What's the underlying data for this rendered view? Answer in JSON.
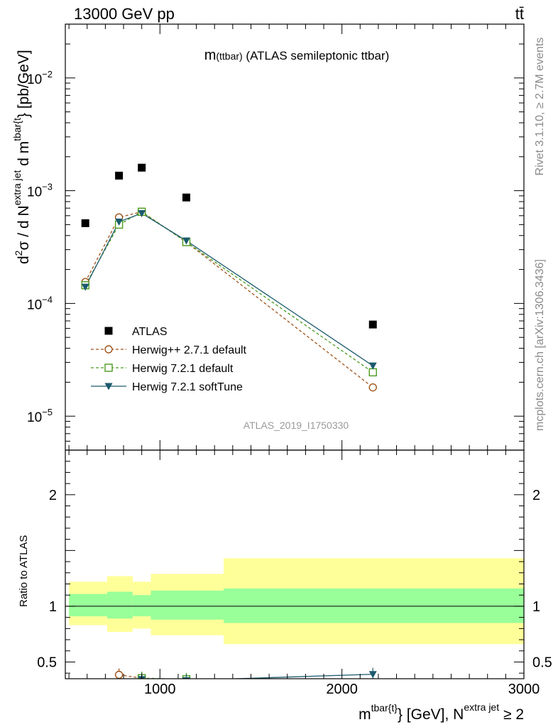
{
  "header": {
    "left": "13000 GeV pp",
    "right": "tt̄"
  },
  "side_text": {
    "rivet": "Rivet 3.1.10, ≥ 2.7M events",
    "site": "mcplots.cern.ch [arXiv:1306.3436]"
  },
  "chart_data": [
    {
      "type": "scatter",
      "panel": "main",
      "title_main": "m",
      "title_sub": "(ttbar)",
      "title_rest": " (ATLAS semileptonic ttbar)",
      "watermark": "ATLAS_2019_I1750330",
      "ylabel": "d²σ / d N^{extra jet} d m^{tbar{t}} [pb/GeV]",
      "yscale": "log",
      "ylim": [
        5e-06,
        0.03
      ],
      "xlim": [
        480,
        3000
      ],
      "y_ticks": [
        {
          "value": 1e-05,
          "base": "10",
          "exp": "−5"
        },
        {
          "value": 0.0001,
          "base": "10",
          "exp": "−4"
        },
        {
          "value": 0.001,
          "base": "10",
          "exp": "−3"
        },
        {
          "value": 0.01,
          "base": "10",
          "exp": "−2"
        }
      ],
      "legend_placement": "bottom-left",
      "series": [
        {
          "name": "ATLAS",
          "style": "data",
          "color": "#000000",
          "x": [
            590,
            775,
            900,
            1145,
            2170
          ],
          "y": [
            0.000515,
            0.00136,
            0.0016,
            0.00087,
            6.5e-05
          ]
        },
        {
          "name": "Herwig++ 2.7.1 default",
          "style": "dashed-circle",
          "color": "#a0521a",
          "x": [
            590,
            775,
            900,
            1145,
            2170
          ],
          "y": [
            0.000155,
            0.00058,
            0.00065,
            0.00035,
            1.8e-05
          ]
        },
        {
          "name": "Herwig 7.2.1 default",
          "style": "dashed-square",
          "color": "#4b9b1e",
          "x": [
            590,
            775,
            900,
            1145,
            2170
          ],
          "y": [
            0.000145,
            0.0005,
            0.00065,
            0.00035,
            2.45e-05
          ]
        },
        {
          "name": "Herwig 7.2.1 softTune",
          "style": "solid-triangle",
          "color": "#1c5a6e",
          "x": [
            590,
            775,
            900,
            1145,
            2170
          ],
          "y": [
            0.00014,
            0.00053,
            0.00063,
            0.00036,
            2.8e-05
          ]
        }
      ]
    },
    {
      "type": "line",
      "panel": "ratio",
      "ylabel": "Ratio to ATLAS",
      "ylim": [
        0.35,
        2.4
      ],
      "y_ticks": [
        0.5,
        1,
        2
      ],
      "y_tick_labels": [
        "0.5",
        "1",
        "2"
      ],
      "xlim": [
        480,
        3000
      ],
      "x_ticks": [
        1000,
        2000,
        3000
      ],
      "x_tick_labels": [
        "1000",
        "2000",
        "3000"
      ],
      "xlabel": "m^{tbar{t}} [GeV], N^{extra jet} ≥ 2",
      "bands": [
        {
          "x_from": 500,
          "x_to": 710,
          "inner": [
            0.91,
            1.11
          ],
          "outer": [
            0.83,
            1.22
          ]
        },
        {
          "x_from": 710,
          "x_to": 850,
          "inner": [
            0.89,
            1.13
          ],
          "outer": [
            0.77,
            1.27
          ]
        },
        {
          "x_from": 850,
          "x_to": 950,
          "inner": [
            0.91,
            1.1
          ],
          "outer": [
            0.8,
            1.22
          ]
        },
        {
          "x_from": 950,
          "x_to": 1350,
          "inner": [
            0.88,
            1.14
          ],
          "outer": [
            0.74,
            1.29
          ]
        },
        {
          "x_from": 1350,
          "x_to": 3000,
          "inner": [
            0.85,
            1.16
          ],
          "outer": [
            0.66,
            1.43
          ]
        }
      ],
      "series": [
        {
          "name": "Herwig++ 2.7.1 default",
          "x": [
            775,
            900
          ],
          "y": [
            0.385,
            0.355
          ]
        },
        {
          "name": "Herwig 7.2.1 default",
          "x": [
            900,
            1145
          ],
          "y": [
            0.355,
            0.345
          ]
        },
        {
          "name": "Herwig 7.2.1 softTune",
          "x": [
            900,
            1145,
            2170
          ],
          "y": [
            0.345,
            0.335,
            0.39
          ]
        }
      ]
    }
  ]
}
